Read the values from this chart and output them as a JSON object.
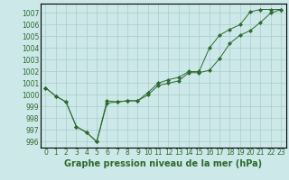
{
  "xlabel": "Graphe pression niveau de la mer (hPa)",
  "x": [
    0,
    1,
    2,
    3,
    4,
    5,
    6,
    7,
    8,
    9,
    10,
    11,
    12,
    13,
    14,
    15,
    16,
    17,
    18,
    19,
    20,
    21,
    22,
    23
  ],
  "line1": [
    1000.6,
    999.9,
    999.4,
    997.3,
    996.8,
    996.0,
    999.5,
    999.4,
    999.5,
    999.5,
    1000.0,
    1000.8,
    1001.0,
    1001.2,
    1001.9,
    1001.9,
    1002.1,
    1003.1,
    1004.4,
    1005.1,
    1005.5,
    1006.2,
    1007.0,
    1007.3
  ],
  "line2": [
    1000.6,
    999.9,
    999.4,
    997.3,
    996.8,
    996.0,
    999.3,
    999.4,
    999.5,
    999.5,
    1000.2,
    1001.0,
    1001.3,
    1001.5,
    1002.0,
    1002.0,
    1004.0,
    1005.1,
    1005.6,
    1006.0,
    1007.1,
    1007.3,
    1007.3,
    1007.3
  ],
  "ylim": [
    995.5,
    1007.8
  ],
  "yticks": [
    996,
    997,
    998,
    999,
    1000,
    1001,
    1002,
    1003,
    1004,
    1005,
    1006,
    1007
  ],
  "line_color": "#2d6a2d",
  "marker": "D",
  "marker_size": 2,
  "bg_color": "#cce8e8",
  "grid_color": "#aacccc",
  "xlabel_fontsize": 7,
  "tick_fontsize": 5.5
}
